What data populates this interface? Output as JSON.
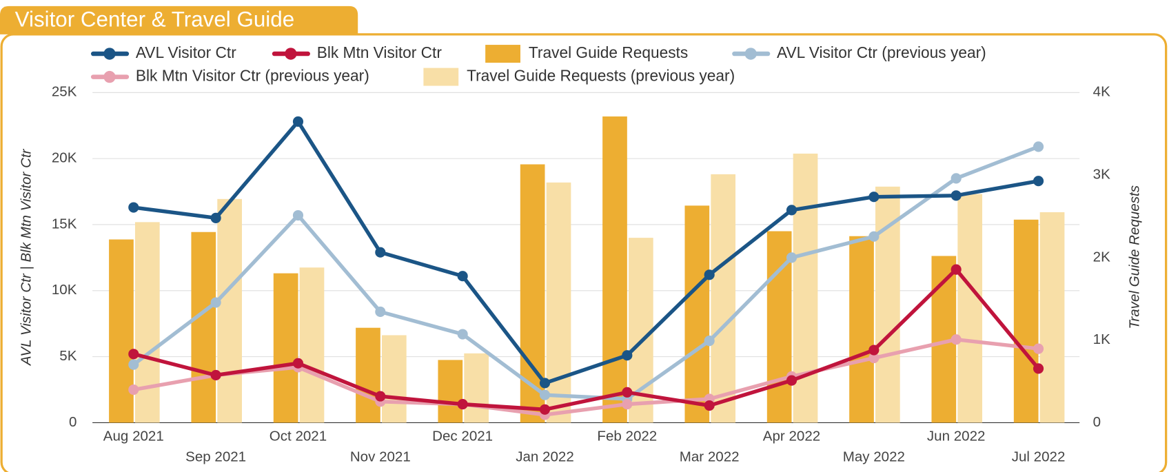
{
  "chart_data": {
    "type": "bar-line",
    "title": "Visitor Center & Travel Guide",
    "ylabel": "AVL Visitor Ctr | Blk Mtn Visitor Ctr",
    "y2label": "Travel Guide Requests",
    "categories": [
      "Aug 2021",
      "Sep 2021",
      "Oct 2021",
      "Nov 2021",
      "Dec 2021",
      "Jan 2022",
      "Feb 2022",
      "Mar 2022",
      "Apr 2022",
      "May 2022",
      "Jun 2022",
      "Jul 2022"
    ],
    "ylim": [
      0,
      25000
    ],
    "yticks": [
      0,
      {
        "value": 5000,
        "label": "5K"
      },
      {
        "value": 10000,
        "label": "10K"
      },
      {
        "value": 15000,
        "label": "15K"
      },
      {
        "value": 20000,
        "label": "20K"
      },
      {
        "value": 25000,
        "label": "25K"
      }
    ],
    "y2lim": [
      0,
      4000
    ],
    "y2ticks": [
      0,
      {
        "value": 1000,
        "label": "1K"
      },
      {
        "value": 2000,
        "label": "2K"
      },
      {
        "value": 3000,
        "label": "3K"
      },
      {
        "value": 4000,
        "label": "4K"
      }
    ],
    "grid": true,
    "series": [
      {
        "name": "AVL Visitor Ctr",
        "type": "line",
        "color": "#1b5586",
        "values": [
          16300,
          15500,
          22800,
          12900,
          11100,
          3000,
          5100,
          11200,
          16100,
          17100,
          17200,
          18300
        ]
      },
      {
        "name": "Blk Mtn Visitor Ctr",
        "type": "line",
        "color": "#c0143c",
        "values": [
          5200,
          3600,
          4500,
          2000,
          1400,
          1000,
          2300,
          1300,
          3200,
          5500,
          11600,
          4100
        ]
      },
      {
        "name": "Travel Guide Requests",
        "type": "bar",
        "axis": "y2",
        "color": "#edae32",
        "values": [
          2220,
          2310,
          1810,
          1150,
          760,
          3130,
          3710,
          2630,
          2320,
          2260,
          2020,
          2460
        ]
      },
      {
        "name": "AVL Visitor Ctr (previous year)",
        "type": "line",
        "color": "#a2bdd3",
        "values": [
          4400,
          9100,
          15700,
          8400,
          6700,
          2100,
          1800,
          6200,
          12500,
          14100,
          18500,
          20900
        ]
      },
      {
        "name": "Blk Mtn Visitor Ctr (previous year)",
        "type": "line",
        "color": "#e8a0af",
        "values": [
          2500,
          3600,
          4200,
          1600,
          1400,
          600,
          1400,
          1800,
          3500,
          4900,
          6300,
          5600
        ]
      },
      {
        "name": "Travel Guide Requests (previous year)",
        "type": "bar",
        "axis": "y2",
        "color": "#f8dfa7",
        "values": [
          2430,
          2710,
          1880,
          1060,
          840,
          2910,
          2240,
          3010,
          3260,
          2860,
          2770,
          2550
        ]
      }
    ]
  }
}
